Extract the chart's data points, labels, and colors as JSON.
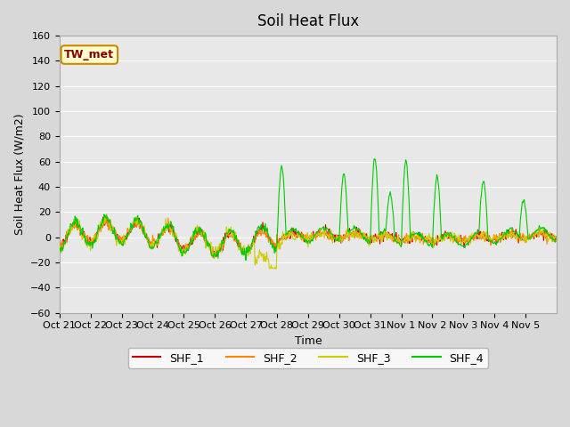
{
  "title": "Soil Heat Flux",
  "xlabel": "Time",
  "ylabel": "Soil Heat Flux (W/m2)",
  "ylim": [
    -60,
    160
  ],
  "yticks": [
    -60,
    -40,
    -20,
    0,
    20,
    40,
    60,
    80,
    100,
    120,
    140,
    160
  ],
  "n_days": 16,
  "n_per_day": 48,
  "bg_color": "#d8d8d8",
  "ax_bg_color": "#e8e8e8",
  "grid_color": "white",
  "series_colors": {
    "SHF_1": "#cc0000",
    "SHF_2": "#ff8800",
    "SHF_3": "#cccc00",
    "SHF_4": "#00cc00"
  },
  "annotation_text": "TW_met",
  "annotation_bg": "#ffffcc",
  "annotation_border": "#cc8800",
  "tick_labels": [
    "Oct 21",
    "Oct 22",
    "Oct 23",
    "Oct 24",
    "Oct 25",
    "Oct 26",
    "Oct 27",
    "Oct 28",
    "Oct 29",
    "Oct 30",
    "Oct 31",
    "Nov 1",
    "Nov 2",
    "Nov 3",
    "Nov 4",
    "Nov 5"
  ],
  "linewidth": 0.8
}
